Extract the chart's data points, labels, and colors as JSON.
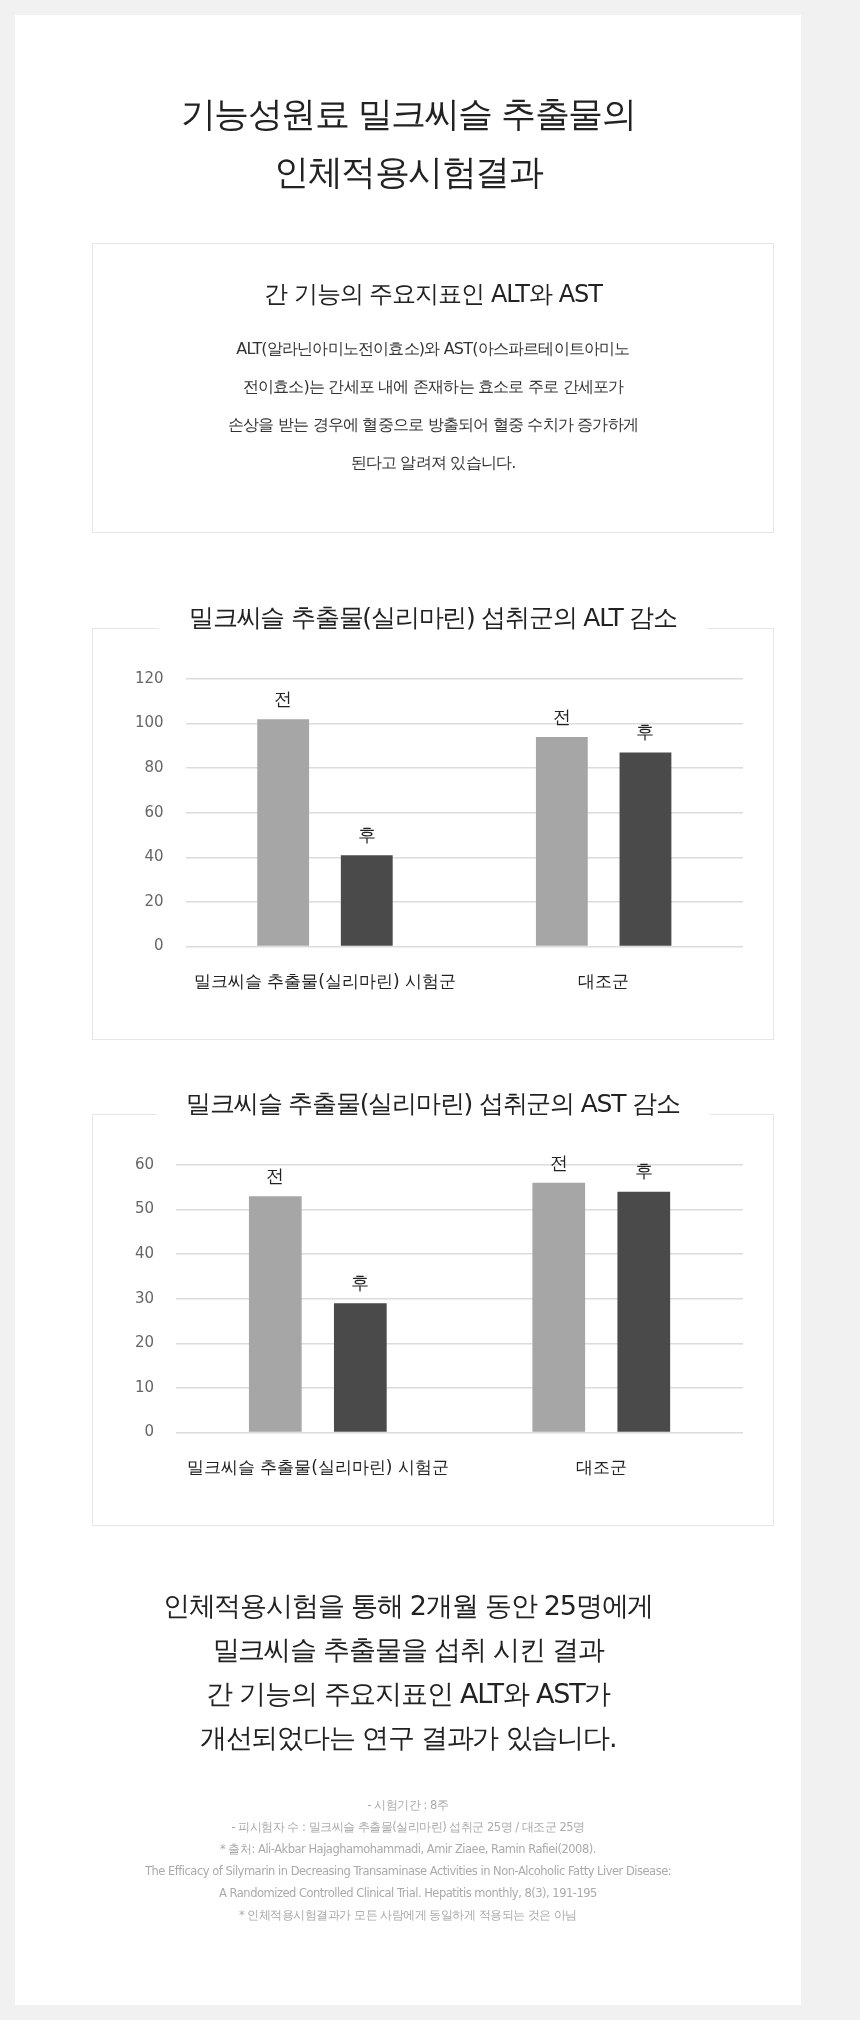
{
  "chart_data": [
    {
      "type": "other",
      "title": "기능성원료 밀크씨슬 추출물의\n인체적용시험결과",
      "subtitle": "간 기능의 주요지표인 ALT와 AST",
      "annotations": [
        "ALT(알라닌아미노전이효소)와 AST(아스파르테이트아미노\n전이효소)는 간세포 내에 존재하는 효소로 주로 간세포가\n손상을 받는 경우에 혈중으로 방출되어 혈중 수치가 증가하게\n된다고 알려져 있습니다."
      ]
    },
    {
      "type": "bar",
      "title": "밀크씨슬 추출물(실리마린) 섭취군의 ALT 감소",
      "categories": [
        "밀크씨슬 추출물(실리마린) 시험군",
        "대조군"
      ],
      "series": [
        {
          "name": "전",
          "color": "#a6a6a6",
          "values": [
            102,
            94
          ]
        },
        {
          "name": "후",
          "color": "#4a4a4a",
          "values": [
            41,
            87
          ]
        }
      ],
      "ylim": [
        0,
        120
      ],
      "yticks": [
        0,
        20,
        40,
        60,
        80,
        100,
        120
      ],
      "grid": "y"
    },
    {
      "type": "bar",
      "title": "밀크씨슬 추출물(실리마린) 섭취군의 AST 감소",
      "categories": [
        "밀크씨슬 추출물(실리마린) 시험군",
        "대조군"
      ],
      "series": [
        {
          "name": "전",
          "color": "#a6a6a6",
          "values": [
            53,
            56
          ]
        },
        {
          "name": "후",
          "color": "#4a4a4a",
          "values": [
            29,
            54
          ]
        }
      ],
      "ylim": [
        0,
        60
      ],
      "yticks": [
        0,
        10,
        20,
        30,
        40,
        50,
        60
      ],
      "grid": "y"
    },
    {
      "type": "other",
      "title": "인체적용시험을 통해 2개월 동안 25명에게\n밀크씨슬 추출물을 섭취 시킨 결과\n간 기능의 주요지표인 ALT와 AST가\n개선되었다는 연구 결과가 있습니다.",
      "annotations": [
        "- 시험기간 : 8주",
        "- 피시험자 수 : 밀크씨슬 추출물(실리마린) 섭취군 25명 / 대조군 25명",
        "* 출처: Ali-Akbar Hajaghamohammadi, Amir Ziaee, Ramin Rafiei(2008).",
        "The Efficacy of Silymarin in Decreasing Transaminase Activities in Non-Alcoholic Fatty Liver Disease:",
        "A Randomized Controlled Clinical Trial. Hepatitis monthly, 8(3), 191-195",
        "* 인체적용시험결과가 모든 사람에게 동일하게 적용되는 것은 아님"
      ]
    }
  ]
}
